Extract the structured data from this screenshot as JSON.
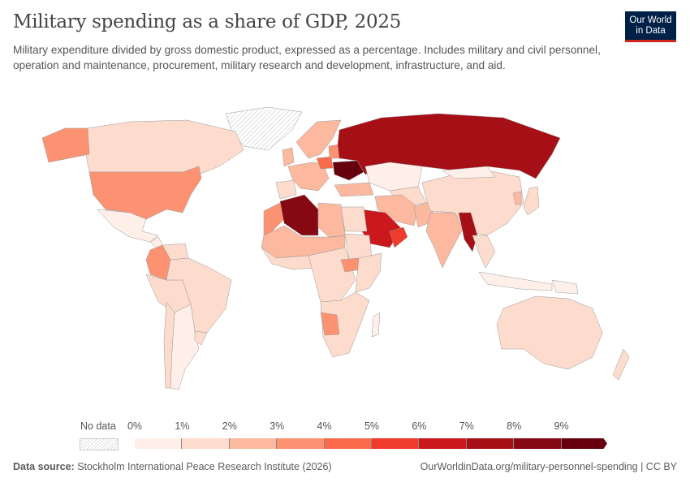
{
  "title": "Military spending as a share of GDP, 2025",
  "subtitle": "Military expenditure divided by gross domestic product, expressed as a percentage. Includes military and civil personnel, operation and maintenance, procurement, military research and development, infrastructure, and aid.",
  "logo": {
    "line1": "Our World",
    "line2": "in Data",
    "bg": "#002147",
    "accent": "#ce261e"
  },
  "legend": {
    "no_data": "No data",
    "ticks": [
      "0%",
      "1%",
      "2%",
      "3%",
      "4%",
      "5%",
      "6%",
      "7%",
      "8%",
      "9%"
    ],
    "colors": [
      "#fef0e9",
      "#fddccd",
      "#fcb99f",
      "#fc9272",
      "#fb6a4a",
      "#ef3b2c",
      "#cb181d",
      "#a50f15",
      "#860812",
      "#67000d"
    ]
  },
  "footer": {
    "source_label": "Data source:",
    "source": "Stockholm International Peace Research Institute (2026)",
    "url": "OurWorldinData.org/military-personnel-spending | CC BY"
  },
  "chart_data": {
    "type": "choropleth",
    "unit": "% of GDP",
    "year": 2025,
    "bins": [
      0,
      1,
      2,
      3,
      4,
      5,
      6,
      7,
      8,
      9
    ],
    "regions": [
      {
        "id": "greenland",
        "bin": null
      },
      {
        "id": "canada",
        "bin": 1
      },
      {
        "id": "alaska",
        "bin": 3
      },
      {
        "id": "usa",
        "bin": 3
      },
      {
        "id": "mexico",
        "bin": 0
      },
      {
        "id": "central-america",
        "bin": 0
      },
      {
        "id": "venezuela",
        "bin": 1
      },
      {
        "id": "colombia",
        "bin": 3
      },
      {
        "id": "peru-bolivia",
        "bin": 1
      },
      {
        "id": "brazil",
        "bin": 1
      },
      {
        "id": "argentina",
        "bin": 0
      },
      {
        "id": "chile",
        "bin": 1
      },
      {
        "id": "uruguay",
        "bin": 1
      },
      {
        "id": "scandinavia",
        "bin": 2
      },
      {
        "id": "western-europe",
        "bin": 2
      },
      {
        "id": "uk",
        "bin": 2
      },
      {
        "id": "iberia",
        "bin": 1
      },
      {
        "id": "poland",
        "bin": 4
      },
      {
        "id": "baltics",
        "bin": 3
      },
      {
        "id": "ukraine",
        "bin": 9
      },
      {
        "id": "russia",
        "bin": 7
      },
      {
        "id": "turkey",
        "bin": 2
      },
      {
        "id": "kazakhstan",
        "bin": 0
      },
      {
        "id": "central-asia",
        "bin": 1
      },
      {
        "id": "iran",
        "bin": 2
      },
      {
        "id": "saudi-arabia",
        "bin": 6
      },
      {
        "id": "oman",
        "bin": 5
      },
      {
        "id": "pakistan",
        "bin": 2
      },
      {
        "id": "india",
        "bin": 2
      },
      {
        "id": "china",
        "bin": 1
      },
      {
        "id": "mongolia",
        "bin": 0
      },
      {
        "id": "myanmar",
        "bin": 7
      },
      {
        "id": "southeast-asia",
        "bin": 1
      },
      {
        "id": "japan",
        "bin": 1
      },
      {
        "id": "korea",
        "bin": 2
      },
      {
        "id": "indonesia",
        "bin": 0
      },
      {
        "id": "papua",
        "bin": 0
      },
      {
        "id": "australia",
        "bin": 1
      },
      {
        "id": "new-zealand",
        "bin": 1
      },
      {
        "id": "morocco",
        "bin": 3
      },
      {
        "id": "algeria",
        "bin": 8
      },
      {
        "id": "libya",
        "bin": 2
      },
      {
        "id": "egypt",
        "bin": 1
      },
      {
        "id": "sahel",
        "bin": 2
      },
      {
        "id": "sudan",
        "bin": 1
      },
      {
        "id": "west-africa",
        "bin": 1
      },
      {
        "id": "central-africa",
        "bin": 1
      },
      {
        "id": "south-sudan",
        "bin": 3
      },
      {
        "id": "east-africa",
        "bin": 1
      },
      {
        "id": "southern-africa",
        "bin": 1
      },
      {
        "id": "botswana-namibia",
        "bin": 3
      },
      {
        "id": "madagascar",
        "bin": 0
      }
    ]
  }
}
